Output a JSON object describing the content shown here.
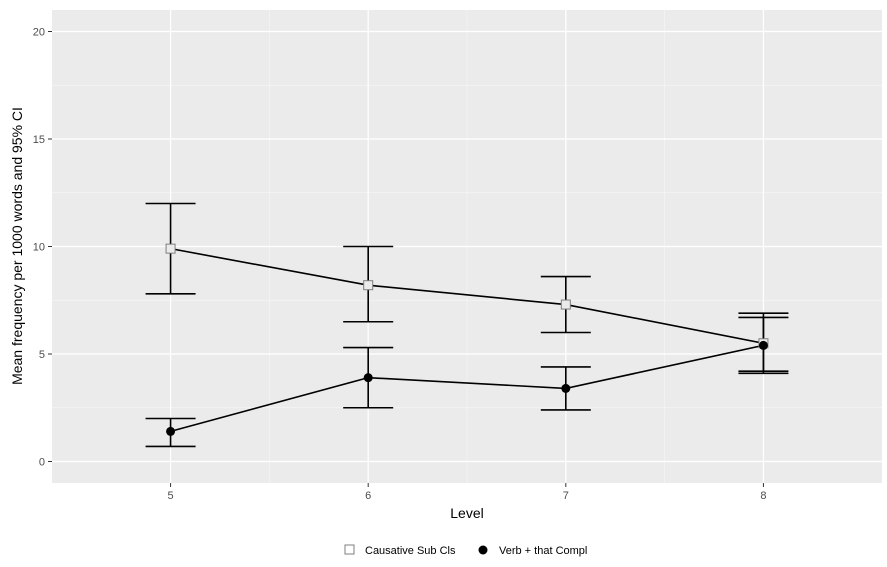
{
  "colors": {
    "panel_background": "#ebebeb",
    "grid_major": "#ffffff",
    "grid_minor": "#f5f5f5",
    "ink": "#000000",
    "tick_text": "#4d4d4d",
    "tick_mark": "#333333"
  },
  "chart_data": {
    "type": "line",
    "xlabel": "Level",
    "ylabel": "Mean frequency per 1000 words and 95% CI",
    "x": [
      5,
      6,
      7,
      8
    ],
    "x_ticks": [
      "5",
      "6",
      "7",
      "8"
    ],
    "xlim": [
      4.4,
      8.6
    ],
    "y_ticks": [
      "0",
      "5",
      "10",
      "15",
      "20"
    ],
    "ylim": [
      -1,
      21
    ],
    "grid": true,
    "legend_position": "bottom",
    "series": [
      {
        "name": "Causative Sub Cls",
        "marker": "open-square",
        "values": [
          9.9,
          8.2,
          7.3,
          5.5
        ],
        "ci_low": [
          7.8,
          6.5,
          6.0,
          4.2
        ],
        "ci_high": [
          12.0,
          10.0,
          8.6,
          6.9
        ]
      },
      {
        "name": "Verb + that Compl",
        "marker": "filled-circle",
        "values": [
          1.4,
          3.9,
          3.4,
          5.4
        ],
        "ci_low": [
          0.7,
          2.5,
          2.4,
          4.1
        ],
        "ci_high": [
          2.0,
          5.3,
          4.4,
          6.7
        ]
      }
    ]
  }
}
